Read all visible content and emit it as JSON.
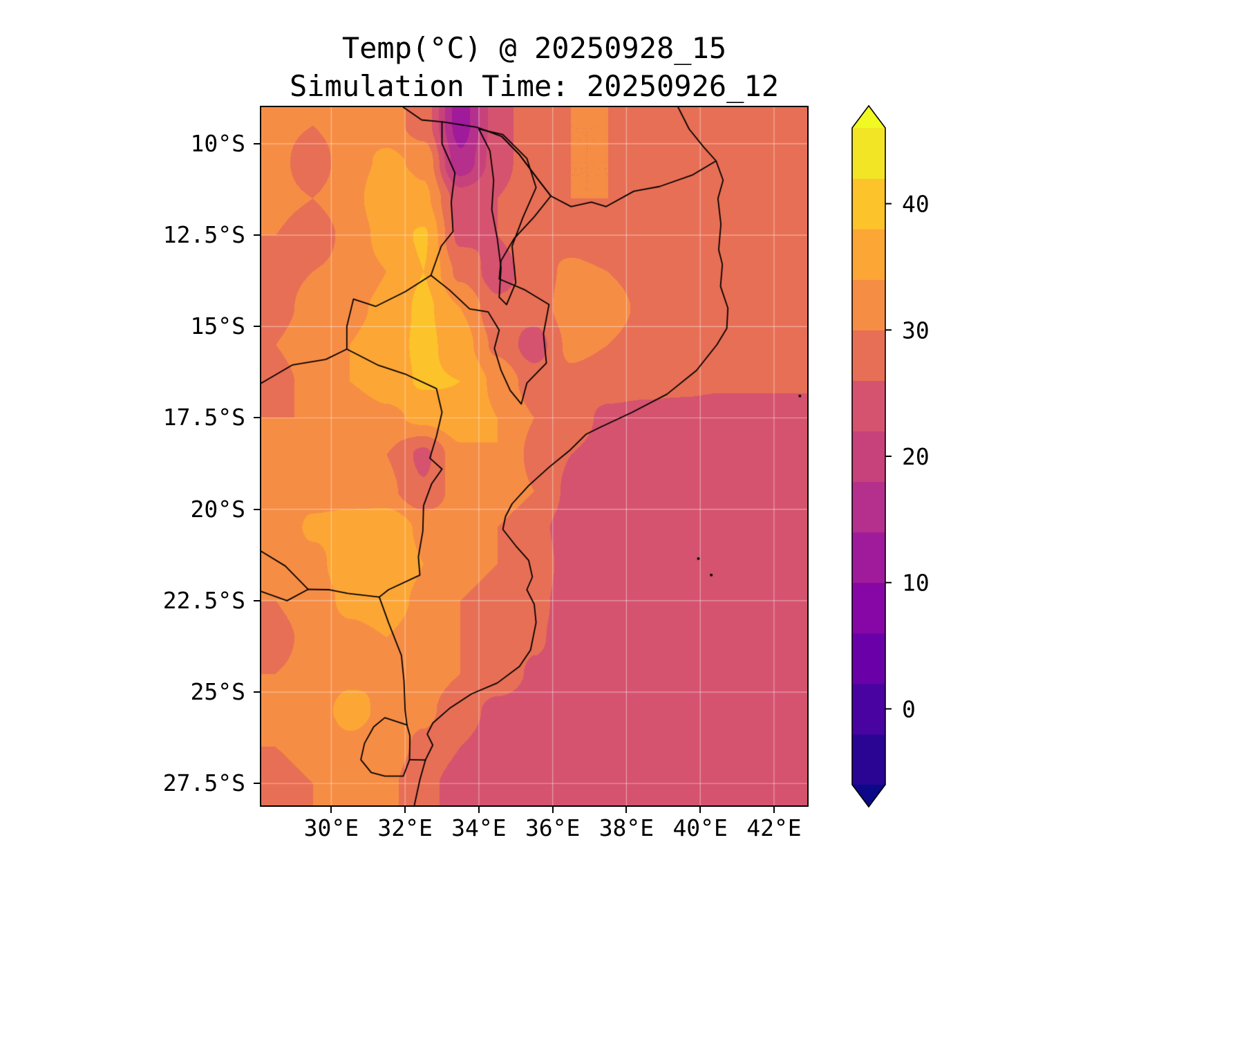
{
  "title": {
    "line1": "Temp(°C) @ 20250928_15",
    "line2": "Simulation Time: 20250926_12"
  },
  "axes": {
    "lat_tick_labels": [
      "10°S",
      "12.5°S",
      "15°S",
      "17.5°S",
      "20°S",
      "22.5°S",
      "25°S",
      "27.5°S"
    ],
    "lat_tick_values": [
      10,
      12.5,
      15,
      17.5,
      20,
      22.5,
      25,
      27.5
    ],
    "lon_tick_labels": [
      "30°E",
      "32°E",
      "34°E",
      "36°E",
      "38°E",
      "40°E",
      "42°E"
    ],
    "lon_tick_values": [
      30,
      32,
      34,
      36,
      38,
      40,
      42
    ]
  },
  "colorbar": {
    "tick_labels": [
      "40",
      "30",
      "20",
      "10",
      "0"
    ],
    "tick_values": [
      40,
      30,
      20,
      10,
      0
    ],
    "levels": [
      -6,
      -2,
      2,
      6,
      10,
      14,
      18,
      22,
      26,
      30,
      34,
      38,
      42,
      46
    ],
    "band_colors": [
      "#2a0593",
      "#4903a0",
      "#6a00a8",
      "#8606a6",
      "#a01a9c",
      "#b52f8c",
      "#c7427b",
      "#d5536e",
      "#e76f55",
      "#f68d45",
      "#fca636",
      "#fcc32a",
      "#f2e526"
    ],
    "under_color": "#0d0887",
    "over_color": "#f0f921",
    "units": "°C"
  },
  "chart_data": {
    "type": "heatmap",
    "title": "Temp(°C) @ 20250928_15",
    "subtitle": "Simulation Time: 20250926_12",
    "xlabel": "",
    "ylabel": "",
    "variable": "Temp",
    "units": "°C",
    "colormap": "plasma",
    "contour_levels": [
      -6,
      -2,
      2,
      6,
      10,
      14,
      18,
      22,
      26,
      30,
      34,
      38,
      42,
      46
    ],
    "lon_range": [
      28.1,
      42.9
    ],
    "lat_range_south": [
      9.0,
      28.1
    ],
    "grid_lon": [
      28.5,
      29.5,
      30.5,
      31.5,
      32.5,
      33.5,
      34.5,
      35.5,
      36.5,
      37.5,
      38.5,
      39.5,
      40.5,
      41.5,
      42.5
    ],
    "grid_lat_south": [
      9.5,
      10.5,
      11.5,
      12.5,
      13.5,
      14.5,
      15.5,
      16.5,
      17.5,
      18.5,
      19.5,
      20.5,
      21.5,
      22.5,
      23.5,
      24.5,
      25.5,
      26.5,
      27.5
    ],
    "values": [
      [
        31,
        30,
        32,
        32,
        28,
        12,
        24,
        29,
        30,
        30,
        29,
        28.5,
        28,
        28,
        28
      ],
      [
        31,
        28,
        32,
        35,
        33,
        15,
        24,
        29,
        30,
        30,
        29,
        28.5,
        28,
        28,
        28
      ],
      [
        31,
        30,
        32,
        38,
        35,
        24,
        26,
        29,
        30,
        30,
        28.5,
        26,
        28,
        28,
        28
      ],
      [
        30,
        28,
        31,
        36,
        38.5,
        25,
        26,
        29,
        28,
        26,
        29,
        28,
        28,
        28,
        28
      ],
      [
        29,
        30,
        31,
        34,
        38,
        29,
        24,
        28,
        31,
        30,
        29,
        29,
        28,
        28,
        28
      ],
      [
        29,
        31,
        33,
        35,
        39,
        34,
        27,
        28,
        32,
        31,
        29.5,
        28.5,
        28,
        28,
        28
      ],
      [
        30,
        32,
        34,
        36,
        39,
        36,
        29,
        24,
        31,
        30,
        29,
        28.5,
        28,
        28,
        28
      ],
      [
        29,
        31,
        34,
        36,
        38.5,
        38,
        33,
        28,
        29,
        28,
        27.5,
        27,
        26.5,
        26.5,
        26.5
      ],
      [
        30,
        30,
        31,
        33,
        35,
        37,
        34,
        30,
        28,
        25,
        24.5,
        24.5,
        24.5,
        24.5,
        24.5
      ],
      [
        31,
        31,
        32,
        30,
        25,
        33,
        34,
        29,
        26,
        24.5,
        24.5,
        24.5,
        24.5,
        24.5,
        24.5
      ],
      [
        32,
        33,
        33,
        31,
        26.5,
        32,
        33,
        30,
        25,
        24.5,
        24.5,
        24.5,
        24.5,
        24.5,
        24.5
      ],
      [
        32,
        34.5,
        35,
        37.5,
        33,
        32,
        30,
        27,
        24.5,
        24.5,
        24.5,
        24.5,
        24.5,
        24.5,
        24.5
      ],
      [
        31,
        33,
        36,
        38,
        34,
        31,
        30,
        28,
        24.5,
        24.5,
        24.5,
        24.5,
        24.5,
        24.5,
        24.5
      ],
      [
        30,
        32,
        35,
        36,
        33,
        30,
        29,
        27,
        24.5,
        24.5,
        24.5,
        24.5,
        24.5,
        24.5,
        24.5
      ],
      [
        29,
        31,
        33,
        34,
        32,
        30,
        29,
        26.5,
        24.5,
        24.5,
        24.5,
        24.5,
        24.5,
        24.5,
        24.5
      ],
      [
        30,
        31,
        33,
        34,
        32,
        30,
        28,
        25.5,
        24.5,
        24.5,
        24.5,
        24.5,
        24.5,
        24.5,
        24.5
      ],
      [
        31,
        32,
        35.5,
        33,
        31,
        27.5,
        25,
        24.5,
        24.5,
        24.5,
        24.5,
        24.5,
        24.5,
        24.5,
        24.5
      ],
      [
        30,
        31,
        33,
        32,
        29,
        26,
        24.5,
        24.5,
        24.5,
        24.5,
        24.5,
        24.5,
        24.5,
        24.5,
        24.5
      ],
      [
        29,
        30,
        32,
        31,
        27,
        24.5,
        24.5,
        24.5,
        24.5,
        24.5,
        24.5,
        24.5,
        24.5,
        24.5,
        24.5
      ]
    ]
  },
  "map_overlays": {
    "gridline_color": "rgba(255,255,255,0.45)",
    "borders": [
      [
        [
          39.4,
          9.0
        ],
        [
          39.7,
          9.6
        ],
        [
          40.1,
          10.1
        ],
        [
          40.43,
          10.47
        ],
        [
          40.62,
          11.0
        ],
        [
          40.48,
          11.5
        ],
        [
          40.56,
          12.2
        ],
        [
          40.5,
          12.9
        ],
        [
          40.6,
          13.3
        ],
        [
          40.55,
          13.9
        ],
        [
          40.75,
          14.5
        ],
        [
          40.72,
          15.05
        ],
        [
          40.45,
          15.5
        ],
        [
          39.9,
          16.2
        ],
        [
          39.1,
          16.85
        ],
        [
          38.15,
          17.35
        ],
        [
          37.3,
          17.75
        ],
        [
          36.9,
          17.95
        ],
        [
          36.45,
          18.4
        ],
        [
          35.9,
          18.85
        ],
        [
          35.35,
          19.35
        ],
        [
          34.9,
          19.85
        ],
        [
          34.72,
          20.2
        ],
        [
          34.65,
          20.55
        ],
        [
          35.0,
          21.0
        ],
        [
          35.35,
          21.4
        ],
        [
          35.45,
          21.85
        ],
        [
          35.3,
          22.2
        ],
        [
          35.5,
          22.6
        ],
        [
          35.55,
          23.1
        ],
        [
          35.4,
          23.85
        ],
        [
          35.1,
          24.3
        ],
        [
          34.5,
          24.75
        ],
        [
          33.8,
          25.05
        ],
        [
          33.2,
          25.45
        ],
        [
          32.75,
          25.85
        ],
        [
          32.6,
          26.15
        ],
        [
          32.75,
          26.45
        ],
        [
          32.55,
          26.86
        ],
        [
          32.4,
          27.4
        ],
        [
          32.25,
          28.1
        ]
      ],
      [
        [
          31.95,
          9.0
        ],
        [
          32.45,
          9.35
        ],
        [
          32.98,
          9.4
        ]
      ],
      [
        [
          33.0,
          9.4
        ],
        [
          33.95,
          9.55
        ],
        [
          34.62,
          9.8
        ],
        [
          35.1,
          10.3
        ],
        [
          35.62,
          11.0
        ],
        [
          35.95,
          11.43
        ],
        [
          35.5,
          12.0
        ],
        [
          34.95,
          12.6
        ],
        [
          34.6,
          13.2
        ],
        [
          34.55,
          13.7
        ],
        [
          35.25,
          14.0
        ],
        [
          35.9,
          14.4
        ],
        [
          35.75,
          15.2
        ],
        [
          35.83,
          16.0
        ],
        [
          35.3,
          16.55
        ],
        [
          35.15,
          17.12
        ],
        [
          34.85,
          16.75
        ],
        [
          34.6,
          16.2
        ],
        [
          34.42,
          15.6
        ],
        [
          34.55,
          15.1
        ],
        [
          34.25,
          14.6
        ],
        [
          33.75,
          14.52
        ],
        [
          33.2,
          14.0
        ],
        [
          32.7,
          13.6
        ],
        [
          32.98,
          12.8
        ],
        [
          33.3,
          12.4
        ],
        [
          33.25,
          11.6
        ],
        [
          33.35,
          10.8
        ],
        [
          33.0,
          10.0
        ],
        [
          33.0,
          9.4
        ]
      ],
      [
        [
          34.62,
          9.8
        ],
        [
          35.1,
          10.3
        ],
        [
          35.62,
          11.0
        ],
        [
          35.95,
          11.43
        ],
        [
          36.5,
          11.72
        ],
        [
          37.05,
          11.6
        ],
        [
          37.45,
          11.72
        ],
        [
          38.2,
          11.3
        ],
        [
          38.9,
          11.17
        ],
        [
          39.8,
          10.85
        ],
        [
          40.43,
          10.47
        ]
      ],
      [
        [
          34.0,
          9.6
        ],
        [
          34.3,
          10.2
        ],
        [
          34.4,
          11.0
        ],
        [
          34.35,
          11.8
        ],
        [
          34.5,
          12.6
        ],
        [
          34.6,
          13.4
        ],
        [
          34.55,
          14.2
        ],
        [
          34.75,
          14.4
        ],
        [
          35.0,
          13.8
        ],
        [
          34.9,
          12.8
        ],
        [
          35.2,
          12.0
        ],
        [
          35.55,
          11.2
        ],
        [
          35.3,
          10.4
        ],
        [
          34.65,
          9.75
        ],
        [
          34.0,
          9.6
        ]
      ],
      [
        [
          32.7,
          13.6
        ],
        [
          32.0,
          14.05
        ],
        [
          31.2,
          14.45
        ],
        [
          30.6,
          14.25
        ],
        [
          30.42,
          15.0
        ],
        [
          30.42,
          15.62
        ],
        [
          29.85,
          15.9
        ],
        [
          28.95,
          16.05
        ],
        [
          28.1,
          16.55
        ]
      ],
      [
        [
          30.42,
          15.62
        ],
        [
          31.25,
          16.05
        ],
        [
          32.0,
          16.3
        ],
        [
          32.85,
          16.7
        ],
        [
          33.0,
          17.35
        ],
        [
          32.85,
          18.0
        ],
        [
          32.67,
          18.6
        ],
        [
          33.0,
          18.9
        ],
        [
          32.72,
          19.3
        ],
        [
          32.5,
          19.9
        ],
        [
          32.48,
          20.6
        ],
        [
          32.36,
          21.3
        ],
        [
          32.4,
          21.8
        ],
        [
          31.55,
          22.2
        ],
        [
          31.3,
          22.4
        ]
      ],
      [
        [
          31.3,
          22.4
        ],
        [
          30.45,
          22.3
        ],
        [
          29.95,
          22.2
        ],
        [
          29.37,
          22.19
        ],
        [
          28.8,
          22.5
        ],
        [
          28.1,
          22.25
        ]
      ],
      [
        [
          29.37,
          22.19
        ],
        [
          28.75,
          21.55
        ],
        [
          28.1,
          21.15
        ]
      ],
      [
        [
          31.3,
          22.4
        ],
        [
          31.55,
          23.1
        ],
        [
          31.9,
          24.0
        ],
        [
          31.97,
          24.7
        ],
        [
          32.0,
          25.5
        ],
        [
          32.05,
          25.9
        ]
      ],
      [
        [
          32.05,
          25.9
        ],
        [
          32.13,
          26.2
        ],
        [
          32.12,
          26.85
        ],
        [
          31.95,
          27.3
        ],
        [
          31.45,
          27.3
        ],
        [
          31.08,
          27.2
        ],
        [
          30.8,
          26.85
        ],
        [
          30.9,
          26.4
        ],
        [
          31.15,
          25.95
        ],
        [
          31.45,
          25.7
        ],
        [
          32.05,
          25.9
        ]
      ],
      [
        [
          32.12,
          26.85
        ],
        [
          32.55,
          26.86
        ]
      ]
    ],
    "island_dots": [
      [
        40.3,
        21.8
      ],
      [
        39.95,
        21.35
      ],
      [
        42.7,
        16.9
      ]
    ]
  }
}
